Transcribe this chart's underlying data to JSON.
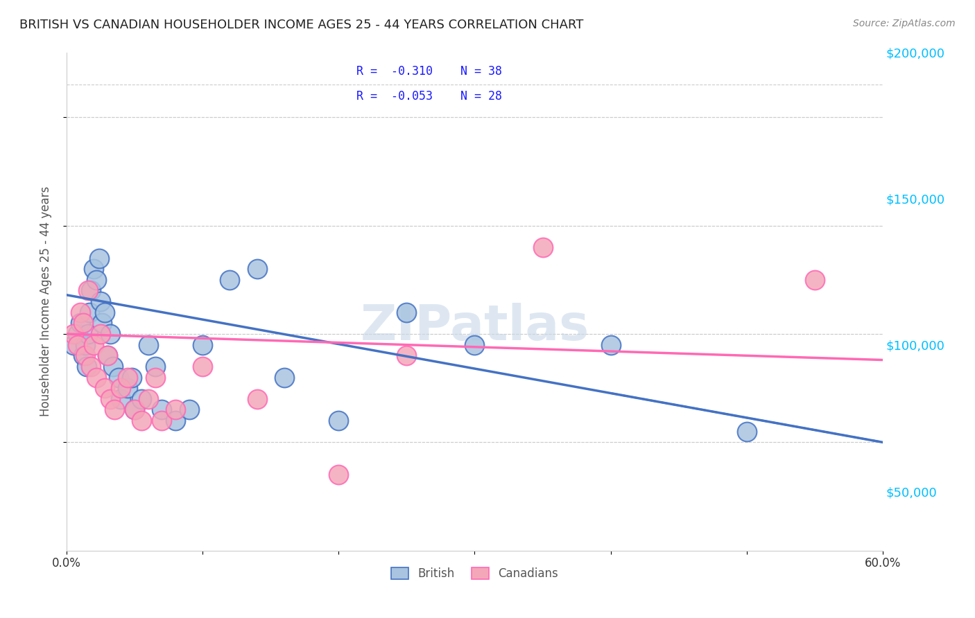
{
  "title": "BRITISH VS CANADIAN HOUSEHOLDER INCOME AGES 25 - 44 YEARS CORRELATION CHART",
  "source": "Source: ZipAtlas.com",
  "ylabel": "Householder Income Ages 25 - 44 years",
  "xlabel": "",
  "xlim": [
    0.0,
    0.6
  ],
  "ylim": [
    0,
    230000
  ],
  "yticks": [
    50000,
    100000,
    150000,
    200000
  ],
  "ytick_labels": [
    "$50,000",
    "$100,000",
    "$150,000",
    "$200,000"
  ],
  "xticks": [
    0.0,
    0.1,
    0.2,
    0.3,
    0.4,
    0.5,
    0.6
  ],
  "xtick_labels": [
    "0.0%",
    "",
    "",
    "",
    "",
    "",
    "60.0%"
  ],
  "british_R": -0.31,
  "british_N": 38,
  "canadian_R": -0.053,
  "canadian_N": 28,
  "british_color": "#a8c4e0",
  "british_line_color": "#4472C4",
  "canadian_color": "#f4a7b9",
  "canadian_line_color": "#FF69B4",
  "watermark": "ZIPatlas",
  "british_x": [
    0.005,
    0.008,
    0.01,
    0.012,
    0.014,
    0.015,
    0.016,
    0.017,
    0.018,
    0.02,
    0.022,
    0.024,
    0.025,
    0.026,
    0.028,
    0.03,
    0.032,
    0.034,
    0.038,
    0.04,
    0.045,
    0.048,
    0.05,
    0.055,
    0.06,
    0.065,
    0.07,
    0.08,
    0.09,
    0.1,
    0.12,
    0.14,
    0.16,
    0.2,
    0.25,
    0.3,
    0.4,
    0.5
  ],
  "british_y": [
    95000,
    100000,
    105000,
    90000,
    95000,
    85000,
    100000,
    110000,
    120000,
    130000,
    125000,
    135000,
    115000,
    105000,
    110000,
    90000,
    100000,
    85000,
    80000,
    70000,
    75000,
    80000,
    65000,
    70000,
    95000,
    85000,
    65000,
    60000,
    65000,
    95000,
    125000,
    130000,
    80000,
    60000,
    110000,
    95000,
    95000,
    55000
  ],
  "canadian_x": [
    0.005,
    0.008,
    0.01,
    0.012,
    0.014,
    0.016,
    0.018,
    0.02,
    0.022,
    0.025,
    0.028,
    0.03,
    0.032,
    0.035,
    0.04,
    0.045,
    0.05,
    0.055,
    0.06,
    0.065,
    0.07,
    0.08,
    0.1,
    0.14,
    0.2,
    0.25,
    0.35,
    0.55
  ],
  "canadian_y": [
    100000,
    95000,
    110000,
    105000,
    90000,
    120000,
    85000,
    95000,
    80000,
    100000,
    75000,
    90000,
    70000,
    65000,
    75000,
    80000,
    65000,
    60000,
    70000,
    80000,
    60000,
    65000,
    85000,
    70000,
    35000,
    90000,
    140000,
    125000
  ]
}
